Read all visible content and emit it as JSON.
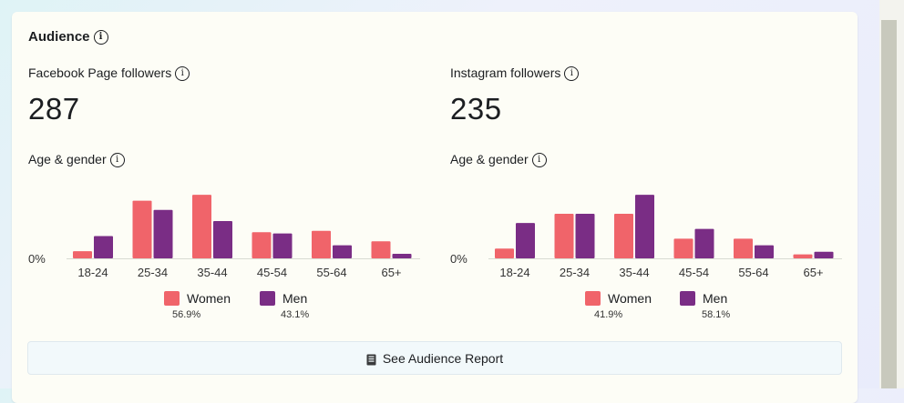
{
  "section_title": "Audience",
  "button_label": "See Audience Report",
  "colors": {
    "women": "#f0646a",
    "men": "#7a2d85"
  },
  "facebook": {
    "metric_label": "Facebook Page followers",
    "metric_value": "287",
    "chart_label": "Age & gender",
    "legend": {
      "women": "Women",
      "men": "Men",
      "women_pct": "56.9%",
      "men_pct": "43.1%"
    },
    "chart_data": {
      "type": "bar",
      "categories": [
        "18-24",
        "25-34",
        "35-44",
        "45-54",
        "55-64",
        "65+"
      ],
      "series": [
        {
          "name": "Women",
          "values": [
            1.1,
            8.8,
            9.7,
            4.0,
            4.2,
            2.6
          ]
        },
        {
          "name": "Men",
          "values": [
            3.4,
            7.4,
            5.7,
            3.8,
            2.0,
            0.7
          ]
        }
      ],
      "ytick": "0%",
      "ymax": 10
    }
  },
  "instagram": {
    "metric_label": "Instagram followers",
    "metric_value": "235",
    "chart_label": "Age & gender",
    "legend": {
      "women": "Women",
      "men": "Men",
      "women_pct": "41.9%",
      "men_pct": "58.1%"
    },
    "chart_data": {
      "type": "bar",
      "categories": [
        "18-24",
        "25-34",
        "35-44",
        "45-54",
        "55-64",
        "65+"
      ],
      "series": [
        {
          "name": "Women",
          "values": [
            1.5,
            6.8,
            6.8,
            3.0,
            3.0,
            0.6
          ]
        },
        {
          "name": "Men",
          "values": [
            5.4,
            6.8,
            9.7,
            4.5,
            2.0,
            1.0
          ]
        }
      ],
      "ytick": "0%",
      "ymax": 10
    }
  }
}
